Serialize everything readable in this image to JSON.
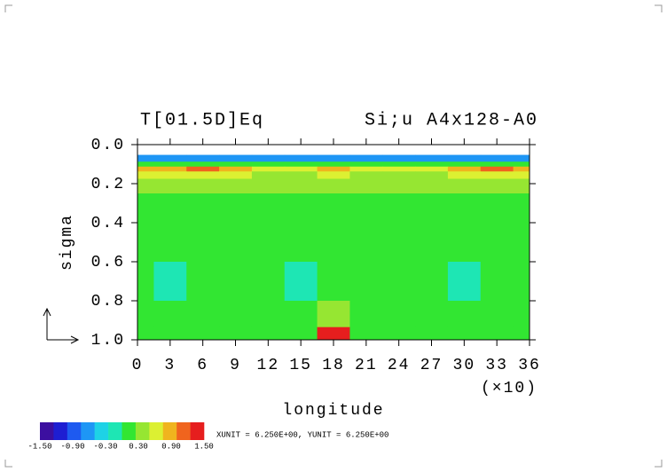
{
  "chart_data": {
    "type": "contour",
    "title_left": "T[01.5D]Eq",
    "title_right": "Si;u A4x128-A0",
    "x_label": "longitude",
    "x_unit_label": "(×10)",
    "y_label": "sigma",
    "xlim": [
      0,
      36
    ],
    "xticks": [
      0,
      3,
      6,
      9,
      12,
      15,
      18,
      21,
      24,
      27,
      30,
      33,
      36
    ],
    "ylim": [
      0,
      1
    ],
    "y_inverted": true,
    "yticks": [
      {
        "value": 0,
        "label": "0.0"
      },
      {
        "value": 0.2,
        "label": "0.2"
      },
      {
        "value": 0.4,
        "label": "0.4"
      },
      {
        "value": 0.6,
        "label": "0.6"
      },
      {
        "value": 0.8,
        "label": "0.8"
      },
      {
        "value": 1,
        "label": "1.0"
      }
    ],
    "field": {
      "x": [
        0,
        3,
        6,
        9,
        12,
        15,
        18,
        21,
        24,
        27,
        30,
        33,
        36
      ],
      "y": [
        0.03,
        0.075,
        0.1,
        0.125,
        0.15,
        0.2,
        0.3,
        0.5,
        0.7,
        0.9,
        0.97
      ],
      "values": [
        [
          null,
          null,
          null,
          null,
          null,
          null,
          null,
          null,
          null,
          null,
          null,
          null,
          null
        ],
        [
          -0.7,
          -0.7,
          -0.7,
          -0.7,
          -0.7,
          -0.7,
          -0.7,
          -0.7,
          -0.7,
          -0.7,
          -0.7,
          -0.7,
          -0.7
        ],
        [
          0.2,
          0.2,
          0.2,
          0.2,
          0.2,
          0.2,
          0.2,
          0.2,
          0.2,
          0.2,
          0.2,
          0.2,
          0.2
        ],
        [
          0.9,
          0.9,
          1.2,
          0.9,
          0.6,
          0.6,
          0.9,
          0.6,
          0.6,
          0.6,
          0.9,
          1.2,
          0.9
        ],
        [
          0.5,
          0.5,
          0.5,
          0.5,
          0.4,
          0.4,
          0.5,
          0.4,
          0.4,
          0.4,
          0.5,
          0.5,
          0.5
        ],
        [
          0.3,
          0.3,
          0.3,
          0.3,
          0.3,
          0.3,
          0.4,
          0.3,
          0.3,
          0.3,
          0.3,
          0.3,
          0.3
        ],
        [
          0.1,
          0.1,
          0.1,
          0.1,
          0.1,
          0.1,
          0.2,
          0.1,
          0.1,
          0.1,
          0.1,
          0.1,
          0.1
        ],
        [
          0.1,
          0.1,
          0.1,
          0.1,
          0.1,
          0.1,
          0.1,
          0.2,
          0.1,
          0.1,
          0.1,
          0.1,
          0.1
        ],
        [
          0.05,
          -0.1,
          0.05,
          0.05,
          0.05,
          -0.1,
          0.05,
          0.05,
          0.05,
          0.05,
          -0.1,
          0.05,
          0.05
        ],
        [
          0.1,
          0.1,
          0.1,
          0.1,
          0.1,
          0.1,
          0.4,
          0.1,
          0.1,
          0.1,
          0.1,
          0.1,
          0.1
        ],
        [
          0.1,
          0.1,
          0.1,
          0.1,
          0.1,
          0.2,
          1.6,
          0.2,
          0.1,
          0.1,
          0.1,
          0.1,
          0.1
        ]
      ]
    },
    "colorbar": {
      "levels": [
        -1.5,
        -1.25,
        -1,
        -0.75,
        -0.5,
        -0.25,
        0,
        0.25,
        0.5,
        0.75,
        1,
        1.25,
        1.5
      ],
      "colors": [
        "#3c0fa0",
        "#1e1ed2",
        "#1e5af0",
        "#1e96f5",
        "#1ed2e6",
        "#1ee6b4",
        "#32e632",
        "#96e632",
        "#dcf032",
        "#f0b41e",
        "#f0641e",
        "#e61e1e"
      ],
      "ticks": [
        {
          "value": -1.5,
          "label": "-1.50"
        },
        {
          "value": -0.9,
          "label": "-0.90"
        },
        {
          "value": -0.3,
          "label": "-0.30"
        },
        {
          "value": 0.3,
          "label": "0.30"
        },
        {
          "value": 0.9,
          "label": "0.90"
        },
        {
          "value": 1.5,
          "label": "1.50"
        }
      ]
    },
    "unit_note": "XUNIT = 6.250E+00, YUNIT = 6.250E+00"
  }
}
